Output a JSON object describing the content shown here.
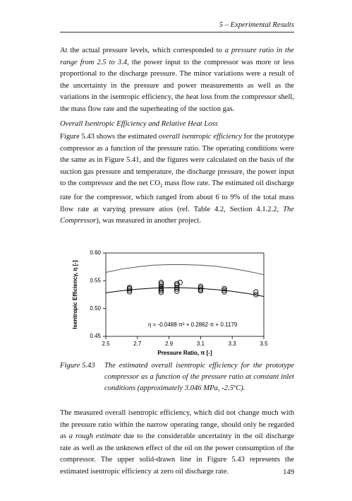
{
  "header": "5 – Experimental Results",
  "body": [
    {
      "runs": [
        {
          "text": "At the actual pressure levels, which corresponded to "
        },
        {
          "text": "a pressure ratio in the range from 2.5 to 3.4",
          "italic": true
        },
        {
          "text": ", the power input to the compressor was more or less proportional to the discharge pressure. The minor variations were a result of the uncertainty in the pressure and power measurements as well as the variations in the isentropic efficiency, the heat loss from the compressor shell, the mass flow rate and the superheating of the suction gas."
        }
      ]
    },
    {
      "runs": [
        {
          "text": "Overall Isentropic Efficiency and Relative Heat Loss",
          "italic": true
        }
      ]
    },
    {
      "runs": [
        {
          "text": "Figure 5.43 shows the estimated "
        },
        {
          "text": "overall isentropic efficiency",
          "italic": true
        },
        {
          "text": " for the prototype compressor as a function of the pressure ratio. The operating conditions were the same as in Figure 5.41, and the figures were calculated on the basis of the suction gas pressure and temperature, the discharge pressure, the power input to the compressor and the net CO"
        },
        {
          "text": "2",
          "sub": true
        },
        {
          "text": " mass flow rate. The estimated oil discharge rate for the compressor, which ranged from about 6 to 9% of the total mass flow rate at varying pressure atios (ref. Table 4.2, Section 4.1.2.2, "
        },
        {
          "text": "The Compressor",
          "italic": true
        },
        {
          "text": "), was measured in another project."
        }
      ]
    }
  ],
  "chart_data": {
    "type": "scatter",
    "xlabel": "Pressure Ratio, π [-]",
    "ylabel": "Isentropic Efficiency, η [-]",
    "annotation": "η = -0.0488·π² + 0.2862·π + 0.1179",
    "xlim": [
      2.5,
      3.5
    ],
    "xticks": [
      2.5,
      2.7,
      2.9,
      3.1,
      3.3,
      3.5
    ],
    "ylim": [
      0.45,
      0.6
    ],
    "yticks": [
      {
        "value": 0.45,
        "label": "0.45"
      },
      {
        "value": 0.5,
        "label": "0.50"
      },
      {
        "value": 0.55,
        "label": "0.55"
      },
      {
        "value": 0.6,
        "label": "0.60"
      }
    ],
    "series": [
      {
        "type": "scatter",
        "color": "#000000",
        "x": [
          2.65,
          2.65,
          2.65,
          2.65,
          2.85,
          2.85,
          2.85,
          2.85,
          2.85,
          2.85,
          2.85,
          2.95,
          2.95,
          2.95,
          2.95,
          2.95,
          2.97,
          3.1,
          3.1,
          3.1,
          3.1,
          3.25,
          3.25,
          3.25,
          3.45,
          3.45
        ],
        "values": [
          0.538,
          0.536,
          0.533,
          0.53,
          0.547,
          0.544,
          0.54,
          0.537,
          0.535,
          0.532,
          0.529,
          0.545,
          0.542,
          0.538,
          0.535,
          0.531,
          0.547,
          0.54,
          0.537,
          0.534,
          0.532,
          0.536,
          0.533,
          0.53,
          0.53,
          0.525
        ]
      },
      {
        "type": "line",
        "color": "#000000",
        "x": [
          2.5,
          2.6,
          2.7,
          2.8,
          2.9,
          3.0,
          3.1,
          3.2,
          3.3,
          3.4,
          3.5
        ],
        "values": [
          0.5284,
          0.5321,
          0.5348,
          0.5367,
          0.5375,
          0.5373,
          0.5361,
          0.534,
          0.531,
          0.5269,
          0.5218
        ]
      },
      {
        "type": "line",
        "color": "#555555",
        "x": [
          2.5,
          2.6,
          2.7,
          2.8,
          2.9,
          3.0,
          3.1,
          3.2,
          3.3,
          3.4,
          3.5
        ],
        "values": [
          0.565,
          0.571,
          0.575,
          0.578,
          0.579,
          0.579,
          0.578,
          0.576,
          0.572,
          0.567,
          0.561
        ]
      }
    ]
  },
  "caption": {
    "label": "Figure 5.43",
    "text": "The estimated overall isentropic efficiency for the prototype compressor as a function of the pressure ratio at constant inlet conditions (approximately 3.046 MPa, -2.5ºC)."
  },
  "closing": {
    "runs": [
      {
        "text": "The measured overall isentropic efficiency, which did not change much with the pressure ratio within the narrow operating range, should only be regarded as "
      },
      {
        "text": "a rough estimate",
        "italic": true
      },
      {
        "text": " due to the considerable uncertainty in the oil discharge rate as well as the unknown effect of the oil on the power consumption of the compressor. The upper solid-drawn line in Figure 5.43 represents the estimated isentropic efficiency at zero oil discharge rate."
      }
    ]
  },
  "page_number": "149"
}
